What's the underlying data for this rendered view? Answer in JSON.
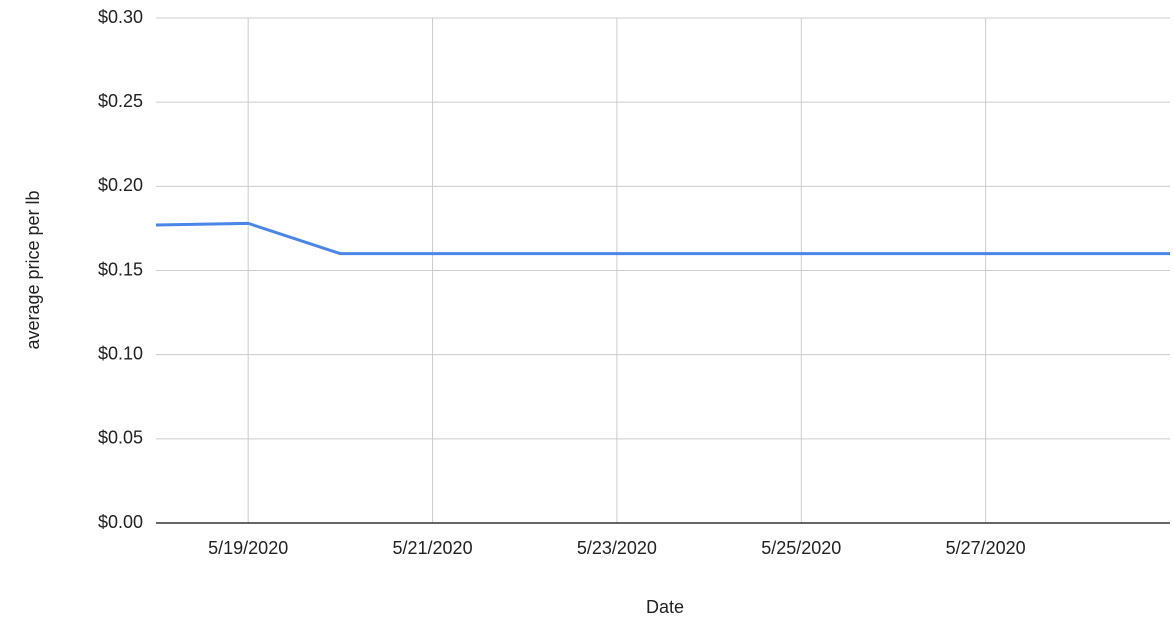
{
  "chart_data": {
    "type": "line",
    "x_label": "Date",
    "y_label": "average price per lb",
    "x": [
      "5/18/2020",
      "5/19/2020",
      "5/20/2020",
      "5/21/2020",
      "5/22/2020",
      "5/23/2020",
      "5/24/2020",
      "5/25/2020",
      "5/26/2020",
      "5/27/2020",
      "5/28/2020",
      "5/29/2020"
    ],
    "series": [
      {
        "color": "#4a86e8",
        "values": [
          0.177,
          0.178,
          0.16,
          0.16,
          0.16,
          0.16,
          0.16,
          0.16,
          0.16,
          0.16,
          0.16,
          0.16
        ]
      }
    ],
    "xlim": [
      "5/18/2020",
      "5/29/2020"
    ],
    "xticks": [
      "5/19/2020",
      "5/21/2020",
      "5/23/2020",
      "5/25/2020",
      "5/27/2020"
    ],
    "ylim": [
      0,
      0.3
    ],
    "yticks": [
      {
        "value": 0,
        "label": "$0.00"
      },
      {
        "value": 0.05,
        "label": "$0.05"
      },
      {
        "value": 0.1,
        "label": "$0.10"
      },
      {
        "value": 0.15,
        "label": "$0.15"
      },
      {
        "value": 0.2,
        "label": "$0.20"
      },
      {
        "value": 0.25,
        "label": "$0.25"
      },
      {
        "value": 0.3,
        "label": "$0.30"
      }
    ],
    "grid": true
  }
}
